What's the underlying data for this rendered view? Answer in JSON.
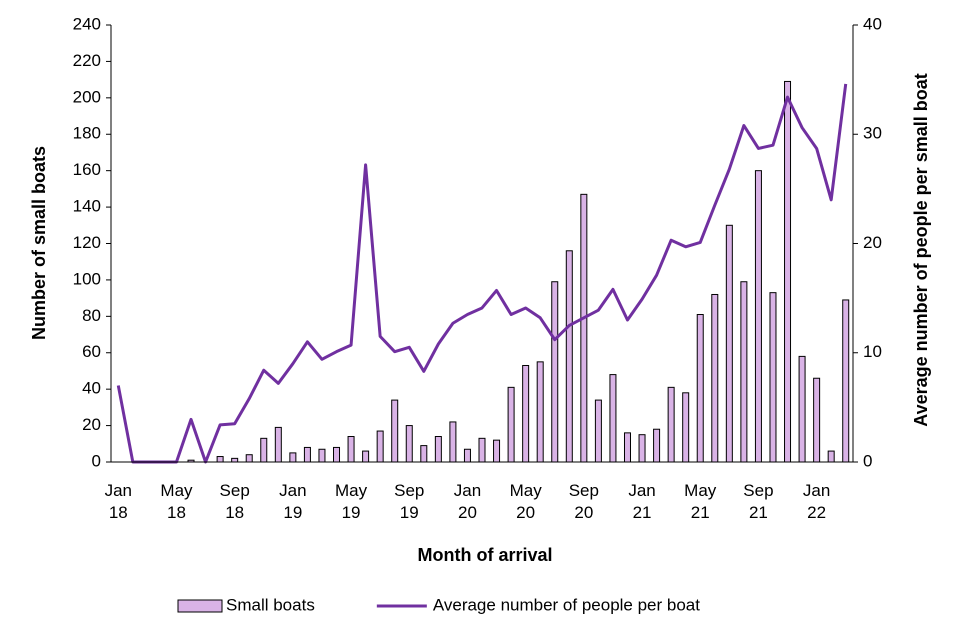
{
  "chart_data": {
    "type": "bar-line",
    "x_label": "Month of arrival",
    "y_label": "Number of small boats",
    "y2_label": "Average number of people per small boat",
    "categories": [
      "Jan 18",
      null,
      null,
      null,
      "May 18",
      null,
      null,
      null,
      "Sep 18",
      null,
      null,
      null,
      "Jan 19",
      null,
      null,
      null,
      "May 19",
      null,
      null,
      null,
      "Sep 19",
      null,
      null,
      null,
      "Jan 20",
      null,
      null,
      null,
      "May 20",
      null,
      null,
      null,
      "Sep 20",
      null,
      null,
      null,
      "Jan 21",
      null,
      null,
      null,
      "May 21",
      null,
      null,
      null,
      "Sep 21",
      null,
      null,
      null,
      "Jan 22",
      null,
      null
    ],
    "series": [
      {
        "name": "Small boats",
        "type": "bar",
        "color": "#d9b3e6",
        "edge": "#000000",
        "values": [
          0,
          0,
          0,
          0,
          0,
          1,
          0,
          3,
          2,
          4,
          13,
          19,
          5,
          8,
          7,
          8,
          14,
          6,
          17,
          34,
          20,
          9,
          14,
          22,
          7,
          13,
          12,
          41,
          53,
          55,
          99,
          116,
          147,
          34,
          48,
          16,
          15,
          18,
          41,
          38,
          81,
          92,
          130,
          99,
          160,
          93,
          209,
          58,
          46,
          6,
          89
        ]
      },
      {
        "name": "Average number of people per boat",
        "type": "line",
        "axis": "y2",
        "color": "#7030a0",
        "values": [
          7.0,
          0,
          0,
          0,
          0,
          3.9,
          0,
          3.4,
          3.5,
          5.8,
          8.4,
          7.2,
          9.0,
          11.0,
          9.4,
          10.1,
          10.7,
          27.2,
          11.5,
          10.1,
          10.5,
          8.3,
          10.8,
          12.7,
          13.5,
          14.1,
          15.7,
          13.5,
          14.1,
          13.2,
          11.2,
          12.5,
          13.2,
          13.9,
          15.8,
          13.0,
          14.9,
          17.1,
          20.3,
          19.7,
          20.1,
          23.5,
          26.8,
          30.8,
          28.7,
          29.0,
          33.4,
          30.6,
          28.7,
          24.0,
          34.6
        ]
      }
    ],
    "ylim": [
      0,
      240
    ],
    "yticks": [
      0,
      20,
      40,
      60,
      80,
      100,
      120,
      140,
      160,
      180,
      200,
      220,
      240
    ],
    "y2lim": [
      0,
      40
    ],
    "y2ticks": [
      0,
      10,
      20,
      30,
      40
    ],
    "legend": "bottom"
  }
}
